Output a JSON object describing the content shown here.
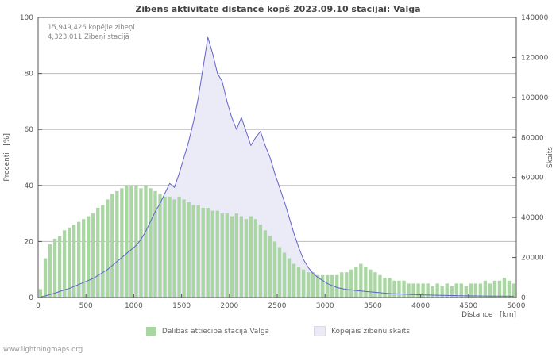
{
  "title": "Zibens aktivitāte distancē kopš 2023.09.10 stacijai: Valga",
  "annotations": {
    "line1": "15,949,426 kopējie zibeņi",
    "line2": "4,323,011 Zibeņi stacijā"
  },
  "axes": {
    "y_left_label": "Procenti   [%]",
    "y_right_label": "Skaits",
    "x_label": "Distance   [km]",
    "y_left_ticks": [
      0,
      20,
      40,
      60,
      80,
      100
    ],
    "y_right_ticks": [
      0,
      20000,
      40000,
      60000,
      80000,
      100000,
      120000,
      140000
    ],
    "x_ticks": [
      0,
      500,
      1000,
      1500,
      2000,
      2500,
      3000,
      3500,
      4000,
      4500,
      5000
    ]
  },
  "legend": [
    {
      "label": "Dalības attiecība stacijā Valga",
      "swatch": "#a9d6a2"
    },
    {
      "label": "Kopējais zibeņu skaits",
      "swatch": "#ebebf7"
    }
  ],
  "watermark": "www.lightningmaps.org",
  "colors": {
    "bar": "#a9d6a2",
    "line": "#6262cb",
    "area": "#ebebf7",
    "grid": "#bdbdbd",
    "axis": "#555555"
  },
  "chart_data": {
    "type": "combo",
    "title": "Zibens aktivitāte distancē kopš 2023.09.10 stacijai: Valga",
    "xlabel": "Distance [km]",
    "ylabel_left": "Procenti [%]",
    "ylabel_right": "Skaits",
    "xlim": [
      0,
      5000
    ],
    "ylim_left": [
      0,
      100
    ],
    "ylim_right": [
      0,
      140000
    ],
    "grid": true,
    "legend_position": "bottom",
    "x": [
      25,
      75,
      125,
      175,
      225,
      275,
      325,
      375,
      425,
      475,
      525,
      575,
      625,
      675,
      725,
      775,
      825,
      875,
      925,
      975,
      1025,
      1075,
      1125,
      1175,
      1225,
      1275,
      1325,
      1375,
      1425,
      1475,
      1525,
      1575,
      1625,
      1675,
      1725,
      1775,
      1825,
      1875,
      1925,
      1975,
      2025,
      2075,
      2125,
      2175,
      2225,
      2275,
      2325,
      2375,
      2425,
      2475,
      2525,
      2575,
      2625,
      2675,
      2725,
      2775,
      2825,
      2875,
      2925,
      2975,
      3025,
      3075,
      3125,
      3175,
      3225,
      3275,
      3325,
      3375,
      3425,
      3475,
      3525,
      3575,
      3625,
      3675,
      3725,
      3775,
      3825,
      3875,
      3925,
      3975,
      4025,
      4075,
      4125,
      4175,
      4225,
      4275,
      4325,
      4375,
      4425,
      4475,
      4525,
      4575,
      4625,
      4675,
      4725,
      4775,
      4825,
      4875,
      4925,
      4975
    ],
    "series": [
      {
        "name": "Dalības attiecība stacijā Valga",
        "type": "bar",
        "axis": "left",
        "unit": "%",
        "values": [
          3,
          14,
          19,
          21,
          22,
          24,
          25,
          26,
          27,
          28,
          29,
          30,
          32,
          33,
          35,
          37,
          38,
          39,
          40,
          40,
          40,
          39,
          40,
          39,
          38,
          37,
          36,
          36,
          35,
          36,
          35,
          34,
          33,
          33,
          32,
          32,
          31,
          31,
          30,
          30,
          29,
          30,
          29,
          28,
          29,
          28,
          26,
          24,
          22,
          20,
          18,
          16,
          14,
          12,
          11,
          10,
          9,
          9,
          8,
          8,
          8,
          8,
          8,
          9,
          9,
          10,
          11,
          12,
          11,
          10,
          9,
          8,
          7,
          7,
          6,
          6,
          6,
          5,
          5,
          5,
          5,
          5,
          4,
          5,
          4,
          5,
          4,
          5,
          5,
          4,
          5,
          5,
          5,
          6,
          5,
          6,
          6,
          7,
          6,
          5
        ]
      },
      {
        "name": "Kopējais zibeņu skaits",
        "type": "area-line",
        "axis": "right",
        "unit": "count",
        "values": [
          300,
          800,
          1500,
          2200,
          3000,
          3800,
          4500,
          5500,
          6500,
          7500,
          8500,
          9500,
          11000,
          12500,
          14000,
          16000,
          18000,
          20000,
          22000,
          24000,
          26000,
          29000,
          33000,
          38000,
          43000,
          47000,
          52000,
          57000,
          55000,
          62000,
          70000,
          78000,
          88000,
          100000,
          115000,
          130000,
          122000,
          112000,
          108000,
          98000,
          90000,
          84000,
          90000,
          83000,
          76000,
          80000,
          83000,
          76000,
          70000,
          62000,
          55000,
          48000,
          40000,
          32000,
          25000,
          19000,
          15000,
          12000,
          10000,
          8500,
          7000,
          6000,
          5000,
          4500,
          4000,
          3800,
          3500,
          3300,
          3000,
          2800,
          2600,
          2400,
          2200,
          2000,
          1900,
          1800,
          1700,
          1600,
          1500,
          1400,
          1300,
          1250,
          1200,
          1150,
          1100,
          1050,
          1000,
          950,
          900,
          850,
          800,
          780,
          760,
          740,
          720,
          700,
          680,
          660,
          640,
          620
        ]
      }
    ]
  }
}
